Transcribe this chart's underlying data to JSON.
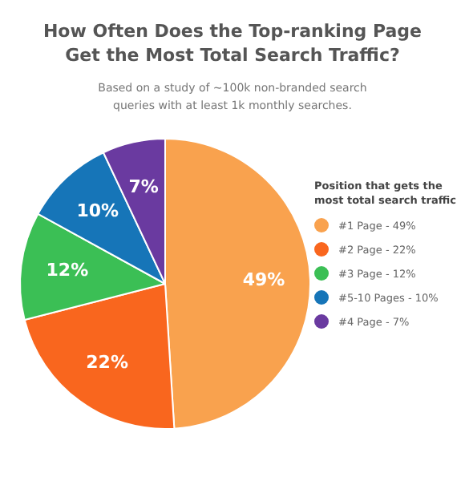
{
  "chart_data": {
    "type": "pie",
    "title": "How Often Does the Top-ranking Page Get the Most Total Search Traffic?",
    "subtitle": "Based on a study of ~100k non-branded search queries with at least 1k monthly searches.",
    "legend_title": "Position that gets the most total search traffic",
    "legend": "right",
    "categories": [
      "#1 Page - 49%",
      "#2 Page - 22%",
      "#3 Page - 12%",
      "#5-10 Pages - 10%",
      "#4 Page - 7%"
    ],
    "values": [
      49,
      22,
      12,
      10,
      7
    ],
    "value_labels": [
      "49%",
      "22%",
      "12%",
      "10%",
      "7%"
    ],
    "colors": [
      "#f9a24e",
      "#f9661e",
      "#3bbf55",
      "#1675b8",
      "#6a3aa0"
    ]
  }
}
